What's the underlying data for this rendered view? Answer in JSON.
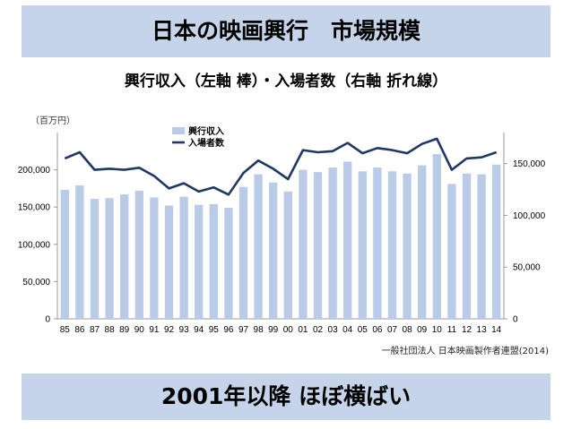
{
  "header": {
    "title": "日本の映画興行　市場規模"
  },
  "subtitle": "興行収入（左軸 棒）・入場者数（右軸 折れ線）",
  "unit_label": "（百万円）",
  "source": "一般社団法人 日本映画製作者連盟(2014)",
  "footer": {
    "conclusion": "2001年以降 ほぼ横ばい"
  },
  "colors": {
    "banner": "#c6d4ea",
    "bar": "#b9cbe6",
    "line": "#1f3864"
  },
  "chart_data": {
    "type": "bar",
    "categories": [
      "85",
      "86",
      "87",
      "88",
      "89",
      "90",
      "91",
      "92",
      "93",
      "94",
      "95",
      "96",
      "97",
      "98",
      "99",
      "00",
      "01",
      "02",
      "03",
      "04",
      "05",
      "06",
      "07",
      "08",
      "09",
      "10",
      "11",
      "12",
      "13",
      "14"
    ],
    "series": [
      {
        "name": "興行収入",
        "type": "bar",
        "axis": "left",
        "values": [
          173000,
          179000,
          161000,
          162000,
          167000,
          172000,
          163000,
          152000,
          164000,
          153000,
          154000,
          149000,
          177000,
          194000,
          183000,
          171000,
          200000,
          197000,
          203000,
          211000,
          198000,
          203000,
          198000,
          195000,
          206000,
          221000,
          181000,
          195000,
          194000,
          207000
        ]
      },
      {
        "name": "入場者数",
        "type": "line",
        "axis": "right",
        "values": [
          155000,
          161000,
          144000,
          145000,
          144000,
          146000,
          138000,
          126000,
          131000,
          123000,
          127000,
          120000,
          141000,
          153000,
          145000,
          135000,
          163000,
          161000,
          162000,
          170000,
          160000,
          165000,
          163000,
          160000,
          169000,
          174000,
          144000,
          155000,
          156000,
          161000
        ]
      }
    ],
    "y_left": {
      "min": 0,
      "max": 250000,
      "ticks": [
        "0",
        "50,000",
        "100,000",
        "150,000",
        "200,000"
      ],
      "tick_values": [
        0,
        50000,
        100000,
        150000,
        200000
      ]
    },
    "y_right": {
      "min": 0,
      "max": 180000,
      "ticks": [
        "0",
        "50,000",
        "100,000",
        "150,000"
      ],
      "tick_values": [
        0,
        50000,
        100000,
        150000
      ]
    },
    "legend_position": "top-center",
    "grid": false
  }
}
